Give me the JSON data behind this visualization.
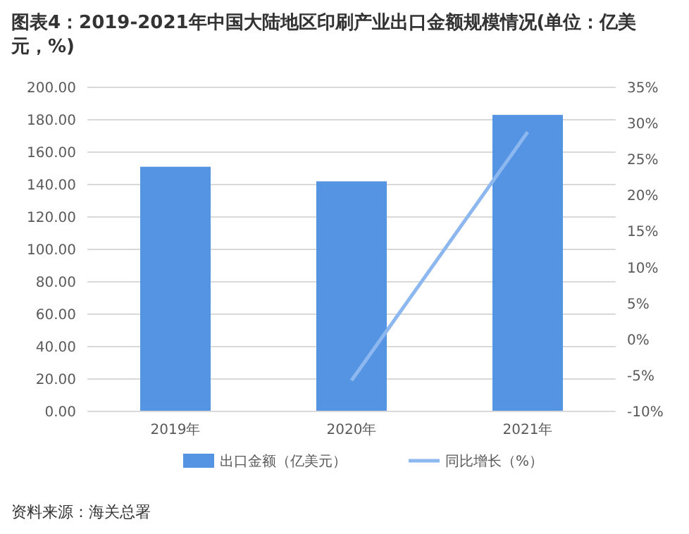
{
  "chart_data": {
    "type": "bar",
    "title": "图表4：2019-2021年中国大陆地区印刷产业出口金额规模情况(单位：亿美元，%)",
    "categories": [
      "2019年",
      "2020年",
      "2021年"
    ],
    "series": [
      {
        "name": "出口金额（亿美元）",
        "color": "#5593e3",
        "values": [
          151,
          142,
          183
        ]
      },
      {
        "name": "同比增长（%）",
        "type": "line",
        "axis": "y2",
        "color": "#8db8ef",
        "values": [
          null,
          -5.7,
          28.8
        ]
      }
    ],
    "ylim": [
      0,
      200
    ],
    "yticks": [
      {
        "value": 0,
        "label": "0.00"
      },
      {
        "value": 20,
        "label": "20.00"
      },
      {
        "value": 40,
        "label": "40.00"
      },
      {
        "value": 60,
        "label": "60.00"
      },
      {
        "value": 80,
        "label": "80.00"
      },
      {
        "value": 100,
        "label": "100.00"
      },
      {
        "value": 120,
        "label": "120.00"
      },
      {
        "value": 140,
        "label": "140.00"
      },
      {
        "value": 160,
        "label": "160.00"
      },
      {
        "value": 180,
        "label": "180.00"
      },
      {
        "value": 200,
        "label": "200.00"
      }
    ],
    "y2lim": [
      -10,
      35
    ],
    "y2ticks": [
      {
        "value": -10,
        "label": "-10%"
      },
      {
        "value": -5,
        "label": "-5%"
      },
      {
        "value": 0,
        "label": "0%"
      },
      {
        "value": 5,
        "label": "5%"
      },
      {
        "value": 10,
        "label": "10%"
      },
      {
        "value": 15,
        "label": "15%"
      },
      {
        "value": 20,
        "label": "20%"
      },
      {
        "value": 25,
        "label": "25%"
      },
      {
        "value": 30,
        "label": "30%"
      },
      {
        "value": 35,
        "label": "35%"
      }
    ],
    "grid": "y",
    "legend": "bottom",
    "line_style": "solid",
    "marker": "none",
    "annotations": [
      "资料来源：海关总署"
    ]
  }
}
